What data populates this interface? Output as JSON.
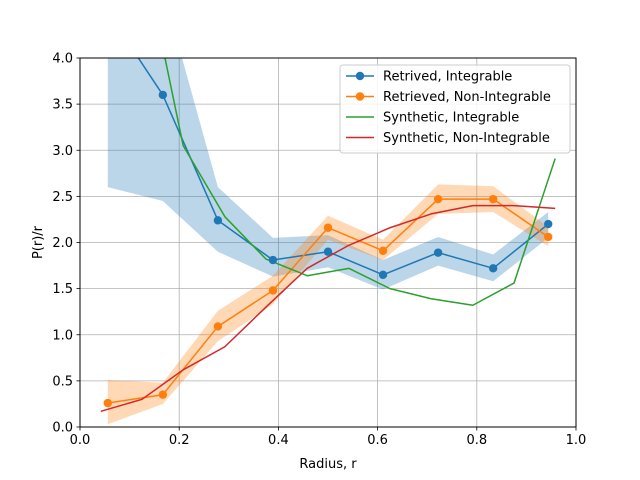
{
  "chart_data": {
    "type": "line",
    "xlabel": "Radius, r",
    "ylabel": "P(r)/r",
    "xlim": [
      0.0,
      1.0
    ],
    "ylim": [
      0.0,
      4.0
    ],
    "xticks": [
      "0.0",
      "0.2",
      "0.4",
      "0.6",
      "0.8",
      "1.0"
    ],
    "yticks": [
      "0.0",
      "0.5",
      "1.0",
      "1.5",
      "2.0",
      "2.5",
      "3.0",
      "3.5",
      "4.0"
    ],
    "grid": true,
    "legend_position": "top-right",
    "series": [
      {
        "name": "Retrived, Integrable",
        "color": "#1f77b4",
        "marker": "circle",
        "x": [
          0.056,
          0.167,
          0.278,
          0.389,
          0.5,
          0.611,
          0.722,
          0.833,
          0.944
        ],
        "y": [
          4.5,
          3.6,
          2.24,
          1.81,
          1.9,
          1.65,
          1.89,
          1.72,
          2.2
        ],
        "band_lower": [
          2.6,
          2.45,
          1.9,
          1.63,
          1.73,
          1.49,
          1.75,
          1.58,
          2.05
        ],
        "band_upper": [
          6.4,
          4.75,
          2.6,
          2.05,
          2.08,
          1.81,
          2.06,
          1.87,
          2.33
        ]
      },
      {
        "name": "Retrieved, Non-Integrable",
        "color": "#ff7f0e",
        "marker": "circle",
        "x": [
          0.056,
          0.167,
          0.278,
          0.389,
          0.5,
          0.611,
          0.722,
          0.833,
          0.944
        ],
        "y": [
          0.26,
          0.35,
          1.09,
          1.48,
          2.16,
          1.91,
          2.47,
          2.47,
          2.06
        ],
        "band_lower": [
          0.03,
          0.25,
          0.93,
          1.33,
          2.03,
          1.81,
          2.31,
          2.33,
          1.96
        ],
        "band_upper": [
          0.51,
          0.48,
          1.26,
          1.64,
          2.29,
          2.03,
          2.63,
          2.61,
          2.17
        ]
      },
      {
        "name": "Synthetic, Integrable",
        "color": "#2ca02c",
        "marker": "none",
        "x": [
          0.125,
          0.208,
          0.292,
          0.375,
          0.458,
          0.542,
          0.625,
          0.708,
          0.792,
          0.875,
          0.958
        ],
        "y": [
          5.2,
          3.05,
          2.28,
          1.82,
          1.64,
          1.72,
          1.5,
          1.39,
          1.32,
          1.56,
          2.91
        ]
      },
      {
        "name": "Synthetic, Non-Integrable",
        "color": "#d62728",
        "marker": "none",
        "x": [
          0.042,
          0.125,
          0.208,
          0.292,
          0.375,
          0.458,
          0.542,
          0.625,
          0.708,
          0.792,
          0.875,
          0.958
        ],
        "y": [
          0.17,
          0.3,
          0.62,
          0.87,
          1.3,
          1.72,
          1.97,
          2.16,
          2.31,
          2.4,
          2.4,
          2.37
        ]
      }
    ]
  }
}
